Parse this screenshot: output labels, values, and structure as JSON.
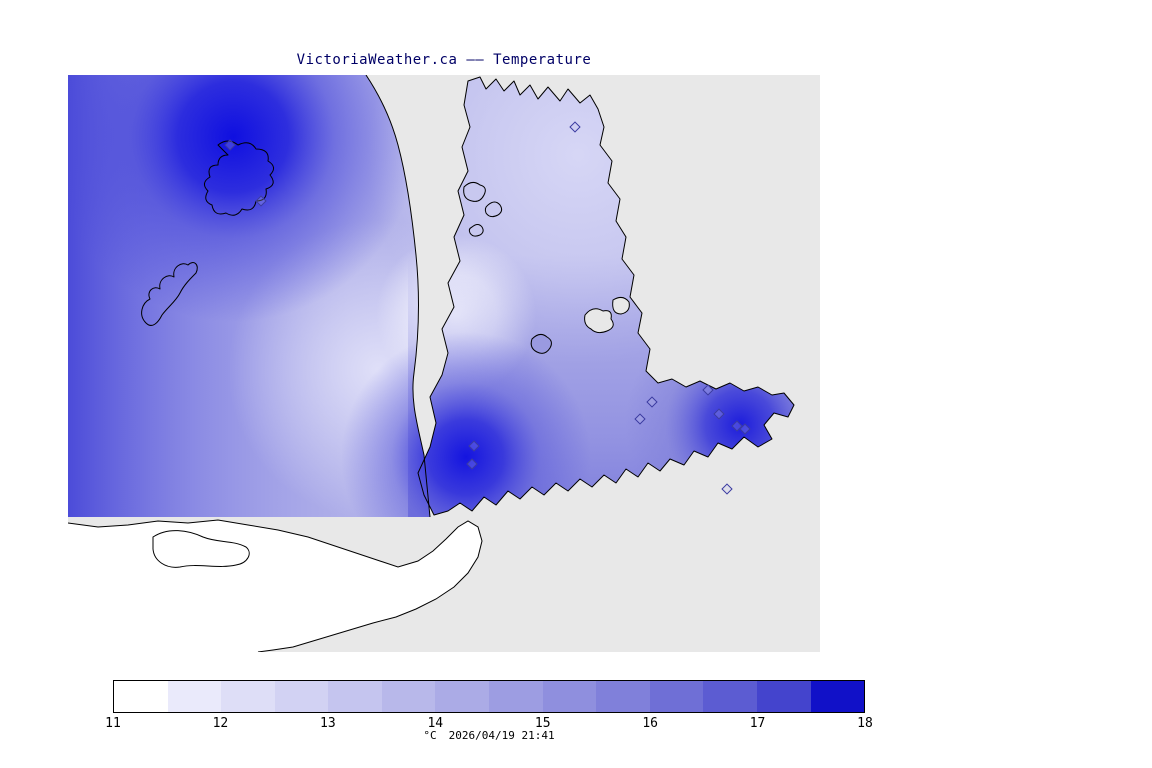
{
  "title": "VictoriaWeather.ca —— Temperature",
  "footer": {
    "units_label": "°C",
    "timestamp": "2026/04/19 21:41"
  },
  "chart_data": {
    "type": "heatmap",
    "variable": "Temperature",
    "units": "°C",
    "title": "VictoriaWeather.ca —— Temperature",
    "colorbar": {
      "min": 11,
      "max": 18,
      "tick_labels": [
        "11",
        "12",
        "13",
        "14",
        "15",
        "16",
        "17",
        "18"
      ],
      "segment_colors": [
        "#ffffff",
        "#eaeafb",
        "#dedef7",
        "#d2d2f3",
        "#c5c5ef",
        "#b8b8ea",
        "#ababe6",
        "#9d9de2",
        "#8f8fde",
        "#8080da",
        "#6f6fd6",
        "#5c5cd2",
        "#4444cd",
        "#1111c8"
      ],
      "orientation": "horizontal"
    },
    "field_summary": {
      "warm_spots_degC": 18,
      "cool_spot_degC": 11,
      "background_color": "#e8e8e8"
    },
    "stations": [
      [
        21.5,
        12.1
      ],
      [
        25.7,
        21.8
      ],
      [
        67.4,
        9.0
      ],
      [
        85.1,
        54.6
      ],
      [
        77.7,
        56.7
      ],
      [
        76.1,
        59.6
      ],
      [
        86.6,
        58.8
      ],
      [
        89.0,
        60.8
      ],
      [
        90.0,
        61.4
      ],
      [
        87.6,
        71.8
      ],
      [
        54.0,
        64.3
      ],
      [
        53.7,
        67.4
      ]
    ]
  }
}
